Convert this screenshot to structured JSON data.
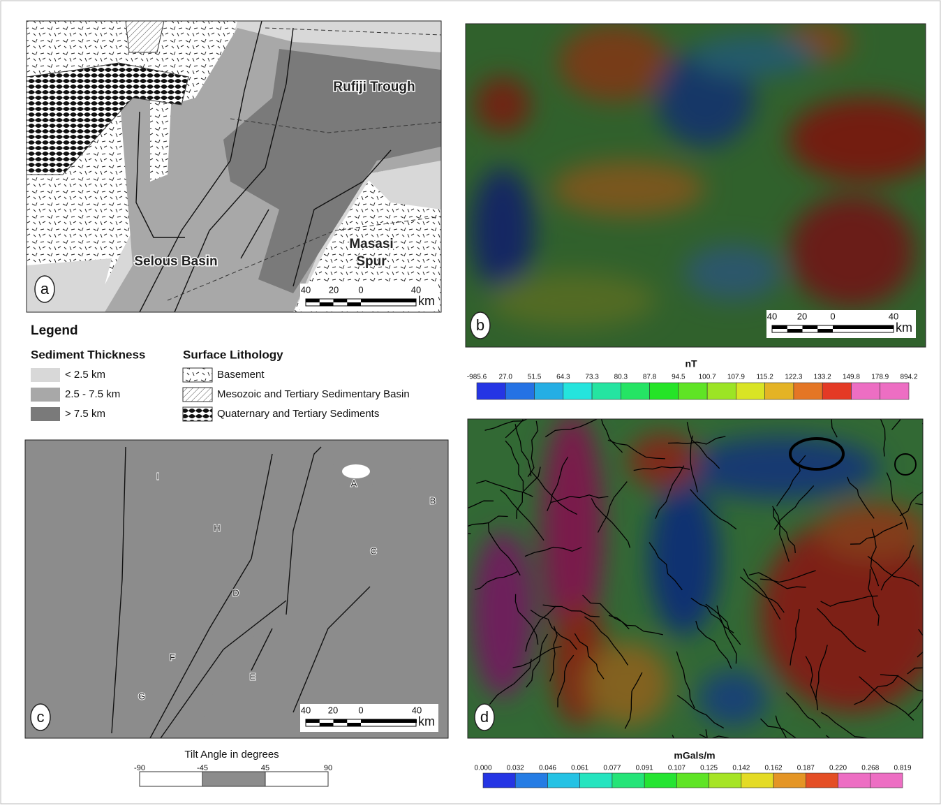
{
  "panel_a": {
    "letter": "a",
    "labels": [
      "Rufiji Trough",
      "Selous Basin",
      "Masasi",
      "Spur"
    ],
    "scale": [
      "40",
      "20",
      "0",
      "40",
      "km"
    ]
  },
  "legend": {
    "title": "Legend",
    "sediment": {
      "heading": "Sediment Thickness",
      "items": [
        "< 2.5 km",
        "2.5 - 7.5 km",
        "> 7.5 km"
      ]
    },
    "lithology": {
      "heading": "Surface Lithology",
      "items": [
        "Basement",
        "Mesozoic and Tertiary Sedimentary Basin",
        "Quaternary and Tertiary Sediments"
      ]
    }
  },
  "panel_b": {
    "letter": "b",
    "scale": [
      "40",
      "20",
      "0",
      "40",
      "km"
    ]
  },
  "colorbar_b": {
    "title": "nT",
    "ticks": [
      "-985.6",
      "27.0",
      "51.5",
      "64.3",
      "73.3",
      "80.3",
      "87.8",
      "94.5",
      "100.7",
      "107.9",
      "115.2",
      "122.3",
      "133.2",
      "149.8",
      "178.9",
      "894.2"
    ]
  },
  "panel_c": {
    "letter": "c",
    "labels": [
      "A",
      "B",
      "C",
      "D",
      "E",
      "F",
      "G",
      "H",
      "I"
    ],
    "scale": [
      "40",
      "20",
      "0",
      "40",
      "km"
    ]
  },
  "colorbar_c": {
    "title": "Tilt Angle in degrees",
    "ticks": [
      "-90",
      "-45",
      "45",
      "90"
    ]
  },
  "panel_d": {
    "letter": "d"
  },
  "colorbar_d": {
    "title": "mGals/m",
    "ticks": [
      "0.000",
      "0.032",
      "0.046",
      "0.061",
      "0.077",
      "0.091",
      "0.107",
      "0.125",
      "0.142",
      "0.162",
      "0.187",
      "0.220",
      "0.268",
      "0.819"
    ]
  }
}
